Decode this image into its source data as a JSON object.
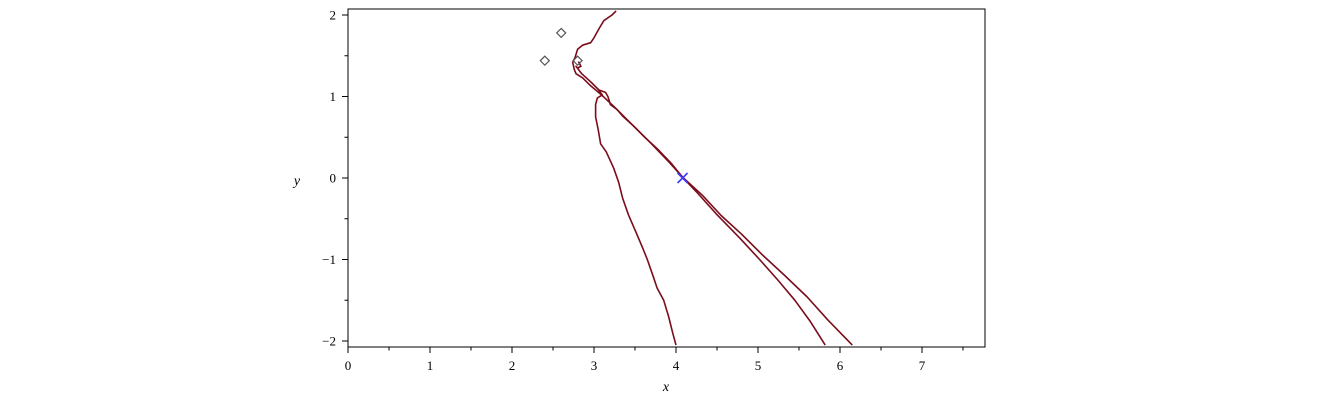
{
  "chart_data": {
    "type": "line",
    "xlabel": "x",
    "ylabel": "y",
    "xlim": [
      0,
      7.8
    ],
    "ylim": [
      -2.05,
      2.07
    ],
    "x_ticks": [
      0,
      1,
      2,
      3,
      4,
      5,
      6,
      7
    ],
    "y_ticks": [
      2,
      1,
      0,
      -1,
      -2
    ],
    "x_tick_labels": [
      "0",
      "1",
      "2",
      "3",
      "4",
      "5",
      "6",
      "7"
    ],
    "y_tick_labels": [
      "2",
      "1",
      "0",
      "−1",
      "−2"
    ],
    "grid": false,
    "colors": {
      "curve": "#7b0c1a",
      "marker": "#555555",
      "cross": "#3b3bff",
      "frame": "#000000"
    },
    "series": [
      {
        "points": [
          [
            3.27,
            2.05
          ],
          [
            3.22,
            2.0
          ],
          [
            3.12,
            1.93
          ],
          [
            3.06,
            1.83
          ],
          [
            3.0,
            1.72
          ],
          [
            2.96,
            1.66
          ],
          [
            2.86,
            1.63
          ],
          [
            2.8,
            1.58
          ],
          [
            2.77,
            1.48
          ],
          [
            2.74,
            1.42
          ],
          [
            2.76,
            1.33
          ],
          [
            2.78,
            1.28
          ],
          [
            2.86,
            1.23
          ],
          [
            2.95,
            1.14
          ],
          [
            3.08,
            1.03
          ],
          [
            3.25,
            0.87
          ],
          [
            3.45,
            0.67
          ],
          [
            3.68,
            0.44
          ],
          [
            3.92,
            0.19
          ],
          [
            4.08,
            0.01
          ],
          [
            4.25,
            -0.17
          ],
          [
            4.5,
            -0.45
          ],
          [
            4.78,
            -0.74
          ],
          [
            5.02,
            -1.0
          ],
          [
            5.24,
            -1.25
          ],
          [
            5.45,
            -1.5
          ],
          [
            5.63,
            -1.75
          ],
          [
            5.82,
            -2.05
          ]
        ]
      },
      {
        "points": [
          [
            2.81,
            1.43
          ],
          [
            2.84,
            1.37
          ],
          [
            2.8,
            1.35
          ],
          [
            2.78,
            1.37
          ],
          [
            2.85,
            1.28
          ],
          [
            2.96,
            1.18
          ],
          [
            3.06,
            1.08
          ],
          [
            3.14,
            1.05
          ],
          [
            3.17,
            1.0
          ],
          [
            3.2,
            0.9
          ],
          [
            3.28,
            0.84
          ],
          [
            3.35,
            0.76
          ],
          [
            3.48,
            0.64
          ],
          [
            3.62,
            0.5
          ],
          [
            3.78,
            0.35
          ],
          [
            3.95,
            0.17
          ],
          [
            4.08,
            0.01
          ],
          [
            4.32,
            -0.21
          ],
          [
            4.55,
            -0.46
          ],
          [
            4.8,
            -0.69
          ],
          [
            5.05,
            -0.94
          ],
          [
            5.32,
            -1.19
          ],
          [
            5.6,
            -1.46
          ],
          [
            5.85,
            -1.74
          ],
          [
            6.15,
            -2.05
          ]
        ]
      },
      {
        "points": [
          [
            3.05,
            1.09
          ],
          [
            3.1,
            1.02
          ],
          [
            3.04,
            0.98
          ],
          [
            3.02,
            0.9
          ],
          [
            3.02,
            0.75
          ],
          [
            3.05,
            0.6
          ],
          [
            3.08,
            0.42
          ],
          [
            3.15,
            0.32
          ],
          [
            3.24,
            0.12
          ],
          [
            3.3,
            -0.05
          ],
          [
            3.35,
            -0.25
          ],
          [
            3.42,
            -0.45
          ],
          [
            3.51,
            -0.66
          ],
          [
            3.59,
            -0.85
          ],
          [
            3.65,
            -1.0
          ],
          [
            3.72,
            -1.2
          ],
          [
            3.77,
            -1.35
          ],
          [
            3.85,
            -1.5
          ],
          [
            3.91,
            -1.7
          ],
          [
            3.96,
            -1.9
          ],
          [
            4.0,
            -2.05
          ]
        ]
      }
    ],
    "markers": [
      {
        "shape": "diamond",
        "x": 2.6,
        "y": 1.78
      },
      {
        "shape": "diamond",
        "x": 2.4,
        "y": 1.44
      },
      {
        "shape": "diamond",
        "x": 2.8,
        "y": 1.44
      },
      {
        "shape": "cross",
        "x": 4.08,
        "y": 0.0
      }
    ]
  }
}
